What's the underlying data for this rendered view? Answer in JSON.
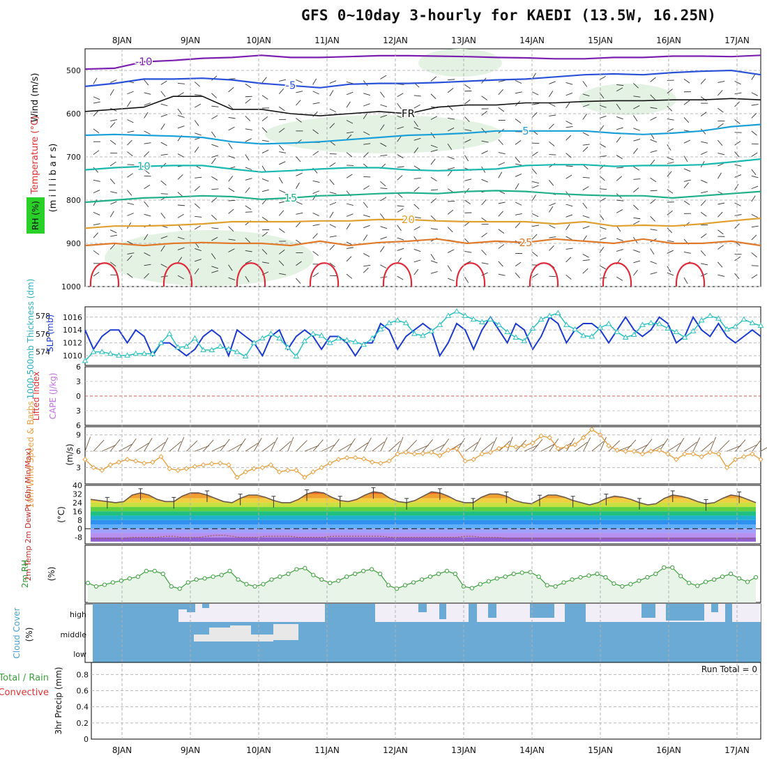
{
  "title": "GFS 0~10day 3-hourly for KAEDI (13.5W, 16.25N)",
  "colors": {
    "purple": "#7b1fb0",
    "blue": "#2a52d8",
    "sky": "#1aa0d8",
    "teal": "#19b8b0",
    "green_teal": "#1fb08a",
    "orange": "#e0a030",
    "dark_orange": "#e07a2a",
    "red": "#e02a3a",
    "rh_green": "#8fd08f",
    "slp": "#1a3ad0",
    "thick": "#2ac0c0",
    "wind": "#e8a040",
    "rh2m": "#3aa03a",
    "cloud": "#6aaad4",
    "grid": "#b0b0b0"
  },
  "chart_data": {
    "dates": [
      "8JAN",
      "9JAN",
      "10JAN",
      "11JAN",
      "12JAN",
      "13JAN",
      "14JAN",
      "15JAN",
      "16JAN",
      "17JAN"
    ],
    "date_start_day_offset": 0.4,
    "upper_air": {
      "type": "line",
      "ylabel_wind": "Wind (m/s)",
      "ylabel_temp": "Temperature (°C)",
      "ylabel_rh": "RH (%)",
      "ylabel_p": "(m i l l i b a r s)",
      "pressure_ticks": [
        500,
        600,
        700,
        800,
        900,
        1000
      ],
      "ylim": [
        450,
        1000
      ],
      "isotherms": [
        {
          "label": "-10",
          "color_key": "purple",
          "values": [
            497,
            495,
            480,
            477,
            472,
            470,
            465,
            470,
            470,
            468,
            466,
            466,
            467,
            468,
            470,
            471,
            473,
            473,
            470,
            470,
            467,
            467,
            468,
            465
          ]
        },
        {
          "label": "-5",
          "color_key": "blue",
          "values": [
            537,
            530,
            520,
            520,
            518,
            522,
            530,
            535,
            540,
            532,
            530,
            530,
            528,
            525,
            522,
            520,
            515,
            510,
            508,
            510,
            505,
            502,
            500,
            510
          ]
        },
        {
          "label": "FR",
          "color_key": "black",
          "values": [
            595,
            590,
            585,
            560,
            560,
            590,
            590,
            600,
            605,
            600,
            595,
            600,
            585,
            580,
            580,
            575,
            575,
            572,
            570,
            570,
            568,
            568,
            565,
            568
          ]
        },
        {
          "label": "5",
          "color_key": "sky",
          "values": [
            650,
            648,
            650,
            652,
            655,
            665,
            670,
            668,
            665,
            660,
            655,
            650,
            648,
            645,
            640,
            640,
            640,
            640,
            645,
            648,
            645,
            640,
            630,
            625
          ]
        },
        {
          "label": "10",
          "color_key": "teal",
          "values": [
            730,
            725,
            722,
            720,
            720,
            728,
            735,
            732,
            728,
            725,
            725,
            730,
            732,
            730,
            728,
            720,
            718,
            718,
            722,
            720,
            720,
            718,
            712,
            705
          ]
        },
        {
          "label": "15",
          "color_key": "green_teal",
          "values": [
            805,
            800,
            795,
            793,
            790,
            792,
            798,
            795,
            790,
            788,
            785,
            783,
            785,
            780,
            778,
            780,
            785,
            788,
            790,
            790,
            795,
            790,
            785,
            780
          ]
        },
        {
          "label": "20",
          "color_key": "orange",
          "values": [
            865,
            860,
            860,
            858,
            855,
            850,
            850,
            850,
            848,
            848,
            845,
            845,
            848,
            850,
            850,
            850,
            855,
            850,
            860,
            858,
            860,
            855,
            848,
            842
          ]
        },
        {
          "label": "25",
          "color_key": "dark_orange",
          "values": [
            905,
            900,
            905,
            900,
            898,
            900,
            900,
            905,
            895,
            905,
            898,
            895,
            890,
            900,
            895,
            898,
            890,
            895,
            900,
            890,
            900,
            900,
            895,
            905
          ]
        }
      ]
    },
    "slp_thickness": {
      "type": "line",
      "ylabel_thickness": "1000-500mb Thickness (dm)",
      "ylabel_slp": "SLP (mb)",
      "thickness_ticks": [
        574,
        576,
        578
      ],
      "slp_ticks": [
        1010,
        1012,
        1014,
        1016
      ],
      "slp_range": [
        1008.5,
        1017.6
      ],
      "slp": [
        1014,
        1011,
        1013,
        1014,
        1014,
        1012,
        1014,
        1013,
        1010,
        1012,
        1012,
        1011,
        1010,
        1011,
        1013,
        1014,
        1013,
        1010,
        1014,
        1013,
        1012,
        1010,
        1013,
        1014,
        1011,
        1013,
        1014,
        1013,
        1011,
        1013,
        1013,
        1012,
        1010,
        1012,
        1012,
        1015,
        1014,
        1011,
        1013,
        1014,
        1015,
        1014,
        1010,
        1012,
        1015,
        1014,
        1011,
        1014,
        1016,
        1014,
        1012,
        1015,
        1014,
        1011,
        1013,
        1016,
        1015,
        1012,
        1014,
        1015,
        1015,
        1014,
        1012,
        1014,
        1016,
        1014,
        1013,
        1014,
        1016,
        1015,
        1012,
        1013,
        1016,
        1014,
        1013,
        1015,
        1013,
        1012,
        1013,
        1014,
        1013
      ],
      "thickness_range": [
        572.5,
        579.0
      ],
      "thickness": [
        573,
        574,
        574,
        573.8,
        573.6,
        573.6,
        573.8,
        573.8,
        573.8,
        575,
        576,
        574.5,
        574.6,
        575.5,
        574.2,
        574.2,
        574.6,
        574.3,
        574,
        573.5,
        575,
        575.5,
        576,
        575.5,
        574.5,
        573.5,
        575.2,
        576,
        575.8,
        575,
        575.5,
        575.3,
        575.1,
        574.8,
        575.5,
        576.5,
        577.2,
        577.5,
        577.2,
        576,
        575.8,
        576.3,
        577,
        578,
        578.5,
        578,
        577.6,
        577.3,
        577.6,
        577,
        576.2,
        575.6,
        575.2,
        576.6,
        577.6,
        578,
        578.3,
        577,
        576.5,
        575.8,
        575.7,
        576.7,
        577.1,
        576.2,
        575.6,
        575.9,
        577,
        577.2,
        577.1,
        576.6,
        576.2,
        575.6,
        576.3,
        577.5,
        578,
        577.7,
        576.5,
        576.8,
        577.6,
        577.2,
        576.9
      ]
    },
    "lifted_index": {
      "type": "line",
      "ylabel_li": "Lifted Index",
      "ylabel_cape": "CAPE (J/kg)",
      "ticks": [
        "6",
        "3",
        "0",
        "3",
        "6"
      ],
      "values": []
    },
    "wind10m": {
      "type": "line",
      "ylabel": "10m Wind Speed & Barbs",
      "units": "(m/s)",
      "ticks": [
        3,
        6,
        9
      ],
      "ylim": [
        0,
        10.5
      ],
      "values": [
        4.5,
        3,
        2.5,
        3.5,
        4,
        4.5,
        4.2,
        3.8,
        4,
        5,
        2.8,
        2.5,
        2.8,
        3.2,
        3.5,
        3.7,
        3.8,
        3.5,
        1.2,
        2.2,
        2.8,
        3,
        3.5,
        2.2,
        2.5,
        2.5,
        1.2,
        2.2,
        3,
        3.8,
        4.5,
        4.8,
        4.8,
        4.6,
        4,
        3.8,
        4.2,
        5.5,
        5.8,
        5.5,
        5.6,
        5.8,
        5.2,
        6.2,
        6.5,
        4.2,
        4.5,
        5.5,
        5.8,
        6.5,
        7,
        6.8,
        7,
        7.5,
        8.8,
        8.5,
        6.5,
        6.8,
        7.2,
        8.5,
        10,
        9,
        7,
        6.2,
        6,
        6,
        5.5,
        6,
        6.2,
        5.5,
        4.5,
        5.5,
        5.5,
        5,
        5.8,
        5.5,
        3,
        4.5,
        5,
        5.5,
        4.5
      ]
    },
    "temp2m": {
      "type": "area",
      "ylabel": "2m Temp 2m DewPt (6hr Min/Max)",
      "units": "(°C)",
      "ticks": [
        -8,
        0,
        8,
        16,
        24,
        32,
        40
      ],
      "ylim": [
        -14,
        40
      ],
      "temp": [
        27,
        26,
        25,
        24,
        25,
        31,
        33,
        31,
        27,
        25,
        25,
        30,
        33,
        33,
        31,
        28,
        25,
        24,
        28,
        31,
        31,
        29,
        26,
        24,
        24,
        27,
        32,
        34,
        33,
        29,
        26,
        25,
        27,
        31,
        34,
        33,
        28,
        25,
        24,
        26,
        30,
        34,
        33,
        30,
        26,
        24,
        24,
        29,
        32,
        32,
        30,
        26,
        24,
        23,
        27,
        31,
        31,
        29,
        26,
        24,
        22,
        24,
        28,
        30,
        29,
        27,
        24,
        22,
        23,
        28,
        31,
        30,
        28,
        25,
        23,
        24,
        28,
        31,
        30,
        27,
        24
      ],
      "dewpt": [
        -9,
        -9,
        -9,
        -9,
        -9,
        -8,
        -8,
        -8,
        -8,
        -7,
        -7,
        -8,
        -8,
        -8,
        -7,
        -6,
        -6,
        -7,
        -8,
        -8,
        -8,
        -7,
        -7,
        -7,
        -7,
        -8,
        -8,
        -8,
        -8,
        -7,
        -7,
        -7,
        -7,
        -7,
        -7,
        -7,
        -8,
        -8,
        -8,
        -8,
        -8,
        -8,
        -8,
        -8,
        -8,
        -7,
        -7,
        -8,
        -8,
        -8,
        -9,
        -9,
        -9,
        -9,
        -9,
        -9,
        -9,
        -9,
        -9,
        -9,
        -9,
        -9,
        -9,
        -9,
        -9,
        -9,
        -9,
        -9,
        -9,
        -9,
        -9,
        -9,
        -9,
        -9,
        -9,
        -9,
        -9,
        -9,
        -9,
        -9,
        -9
      ]
    },
    "rh2m": {
      "type": "area",
      "ylabel": "2m RH",
      "units": "(%)",
      "ylim": [
        0,
        100
      ],
      "values": [
        34,
        28,
        31,
        35,
        38,
        42,
        45,
        55,
        55,
        50,
        28,
        24,
        35,
        40,
        42,
        45,
        48,
        55,
        40,
        32,
        28,
        32,
        40,
        45,
        50,
        58,
        60,
        48,
        40,
        34,
        38,
        45,
        50,
        55,
        58,
        50,
        30,
        24,
        30,
        35,
        40,
        45,
        50,
        55,
        50,
        28,
        25,
        32,
        37,
        42,
        45,
        50,
        52,
        53,
        45,
        30,
        28,
        35,
        40,
        44,
        47,
        50,
        44,
        33,
        28,
        32,
        38,
        44,
        50,
        61,
        61,
        46,
        34,
        29,
        36,
        40,
        45,
        50,
        42,
        36,
        44
      ]
    },
    "cloud": {
      "type": "bar",
      "ylabel": "Cloud Cover",
      "units": "(%)",
      "levels": [
        "high",
        "middle",
        "low"
      ]
    },
    "precip": {
      "type": "bar",
      "ylabel": "3hr Precip (mm)",
      "legend_total": "Total / Rain",
      "legend_conv": "Convective",
      "ticks": [
        0,
        0.2,
        0.4,
        0.6,
        0.8
      ],
      "ylim": [
        0,
        0.95
      ],
      "run_total": "Run Total = 0",
      "values": []
    }
  }
}
